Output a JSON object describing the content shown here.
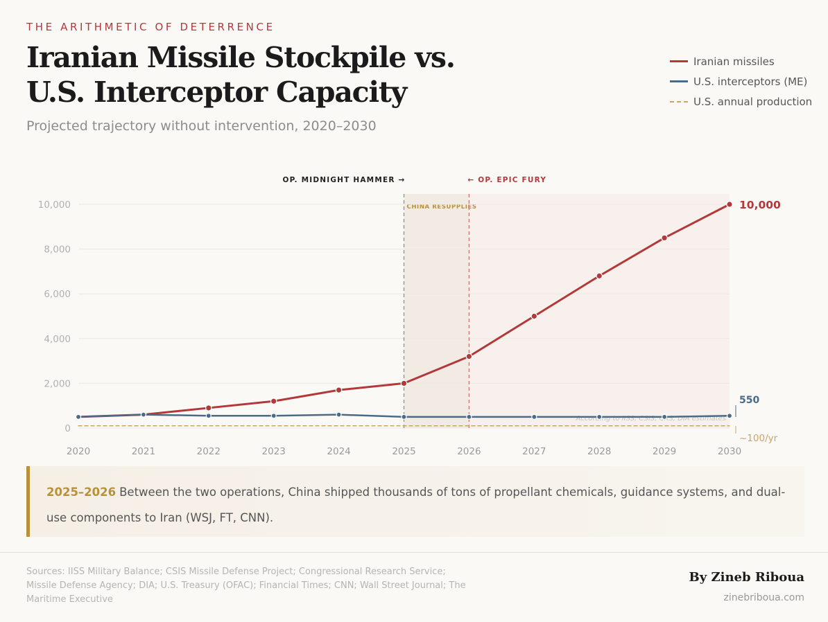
{
  "kicker": "THE ARITHMETIC OF DETERRENCE",
  "title": "Iranian Missile Stockpile vs. U.S. Interceptor Capacity",
  "subtitle": "Projected trajectory without intervention, 2020–2030",
  "legend": {
    "items": [
      {
        "label": "Iranian missiles",
        "style": "solid",
        "color": "#b2383a"
      },
      {
        "label": "U.S. interceptors (ME)",
        "style": "solid",
        "color": "#4a6a86"
      },
      {
        "label": "U.S. annual production",
        "style": "dashed",
        "color": "#c9a46a"
      }
    ]
  },
  "chart_data": {
    "type": "line",
    "x": [
      2020,
      2021,
      2022,
      2023,
      2024,
      2025,
      2026,
      2027,
      2028,
      2029,
      2030
    ],
    "x_tick_labels": [
      "2020",
      "2021",
      "2022",
      "2023",
      "2024",
      "2025",
      "2026",
      "2027",
      "2028",
      "2029",
      "2030"
    ],
    "ylim": [
      0,
      10000
    ],
    "y_ticks": [
      0,
      2000,
      4000,
      6000,
      8000,
      10000
    ],
    "y_tick_labels": [
      "0",
      "2,000",
      "4,000",
      "6,000",
      "8,000",
      "10,000"
    ],
    "grid": true,
    "series": [
      {
        "name": "Iranian missiles",
        "color": "#b2383a",
        "style": "solid",
        "values": [
          500,
          600,
          900,
          1200,
          1700,
          2000,
          3200,
          5000,
          6800,
          8500,
          10000
        ]
      },
      {
        "name": "U.S. interceptors (ME)",
        "color": "#4a6a86",
        "style": "solid",
        "values": [
          500,
          600,
          550,
          550,
          600,
          500,
          500,
          500,
          500,
          500,
          550
        ]
      },
      {
        "name": "U.S. annual production",
        "color": "#c9a46a",
        "style": "dashed",
        "values": [
          100,
          100,
          100,
          100,
          100,
          100,
          100,
          100,
          100,
          100,
          100
        ]
      }
    ],
    "end_labels": {
      "missiles": "10,000",
      "interceptors": "550",
      "production": "~100/yr"
    },
    "shaded_region": {
      "from": 2025,
      "to": 2026,
      "label": "CHINA RESUPPLIES"
    },
    "post_region": {
      "from": 2026,
      "to": 2030
    },
    "events": [
      {
        "x": 2025,
        "label": "OP. MIDNIGHT HAMMER →",
        "color": "#222222"
      },
      {
        "x": 2026,
        "label": "← OP. EPIC FURY",
        "color": "#b2383a"
      }
    ],
    "annotation": "According to IISS, CSIS, CRS, DIA estimates"
  },
  "callout": {
    "years": "2025–2026",
    "text": "Between the two operations, China shipped thousands of tons of propellant chemicals, guidance systems, and dual-use components to Iran (WSJ, FT, CNN)."
  },
  "sources": "Sources: IISS Military Balance; CSIS Missile Defense Project; Congressional Research Service; Missile Defense Agency; DIA; U.S. Treasury (OFAC); Financial Times; CNN; Wall Street Journal; The Maritime Executive",
  "byline": "By Zineb Riboua",
  "site": "zineb­riboua.com"
}
